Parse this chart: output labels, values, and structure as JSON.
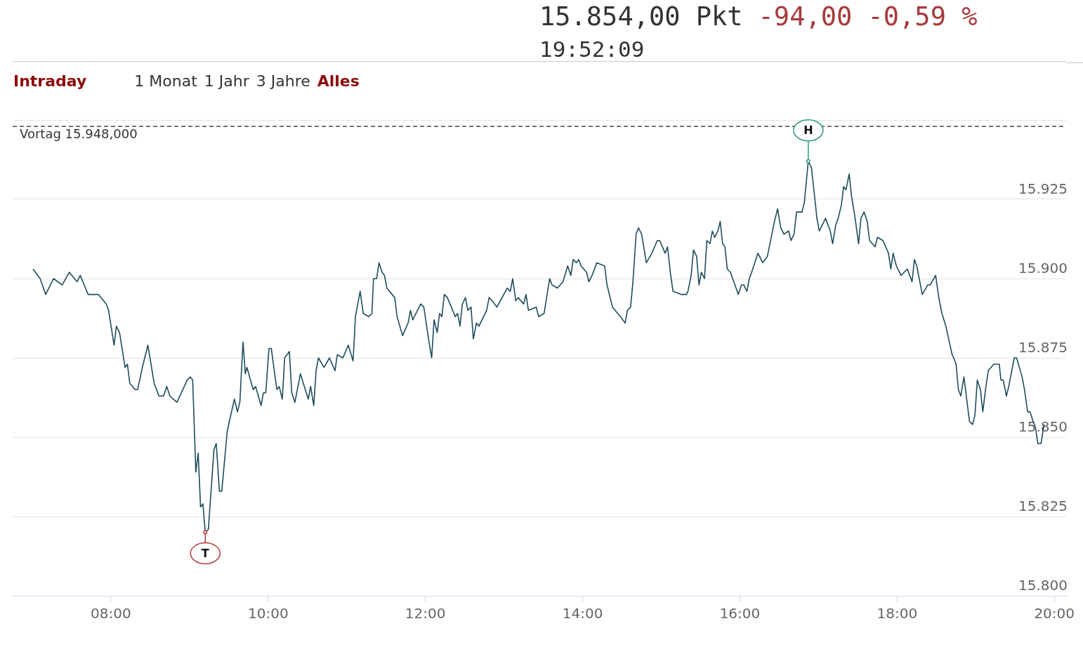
{
  "chart_data": {
    "type": "line",
    "title": "15.854,00 Pkt",
    "subtitle": "19:52:09",
    "annotations": [
      "-94,00 -0,59 %",
      "Intraday",
      "1 Monat",
      "1 Jahr",
      "3 Jahre",
      "Alles",
      {
        "text": "H",
        "x": 16.87,
        "y": 15937
      },
      {
        "text": "T",
        "x": 9.2,
        "y": 15820
      }
    ],
    "color": "#1e4d5c",
    "grid": "y",
    "xlim": [
      6.75,
      20.15
    ],
    "xticks": [
      {
        "value": 8,
        "label": "08:00"
      },
      {
        "value": 10,
        "label": "10:00"
      },
      {
        "value": 12,
        "label": "12:00"
      },
      {
        "value": 14,
        "label": "14:00"
      },
      {
        "value": 16,
        "label": "16:00"
      },
      {
        "value": 18,
        "label": "18:00"
      },
      {
        "value": 20,
        "label": "20:00"
      }
    ],
    "ylim": [
      15800,
      15950
    ],
    "yticks": [
      {
        "value": 15800,
        "label": "15.800"
      },
      {
        "value": 15825,
        "label": "15.825"
      },
      {
        "value": 15850,
        "label": "15.850"
      },
      {
        "value": 15875,
        "label": "15.875"
      },
      {
        "value": 15900,
        "label": "15.900"
      },
      {
        "value": 15925,
        "label": "15.925"
      },
      {
        "value": 15950,
        "label": null
      }
    ],
    "ref_lines": [
      {
        "axis": "y",
        "value": 15948,
        "label": "Vortag 15.948,000",
        "color": "#222222",
        "line_style": "dashed"
      }
    ],
    "x": [
      7.01,
      7.1,
      7.17,
      7.27,
      7.38,
      7.47,
      7.57,
      7.61,
      7.71,
      7.84,
      7.94,
      7.97,
      8.04,
      8.07,
      8.11,
      8.18,
      8.21,
      8.24,
      8.31,
      8.34,
      8.4,
      8.47,
      8.55,
      8.61,
      8.67,
      8.71,
      8.75,
      8.84,
      8.97,
      9.01,
      9.04,
      9.08,
      9.11,
      9.14,
      9.17,
      9.2,
      9.24,
      9.31,
      9.34,
      9.38,
      9.41,
      9.48,
      9.57,
      9.61,
      9.64,
      9.68,
      9.71,
      9.73,
      9.81,
      9.84,
      9.91,
      9.94,
      9.97,
      10.01,
      10.04,
      10.11,
      10.14,
      10.18,
      10.21,
      10.27,
      10.3,
      10.34,
      10.41,
      10.51,
      10.54,
      10.58,
      10.61,
      10.64,
      10.71,
      10.78,
      10.85,
      10.88,
      10.95,
      11.02,
      11.08,
      11.11,
      11.17,
      11.21,
      11.28,
      11.32,
      11.34,
      11.38,
      11.41,
      11.45,
      11.48,
      11.51,
      11.61,
      11.64,
      11.71,
      11.78,
      11.81,
      11.84,
      11.94,
      11.98,
      12.04,
      12.08,
      12.11,
      12.15,
      12.18,
      12.21,
      12.24,
      12.28,
      12.38,
      12.41,
      12.44,
      12.47,
      12.51,
      12.54,
      12.58,
      12.61,
      12.65,
      12.68,
      12.78,
      12.81,
      12.85,
      12.91,
      13.04,
      13.08,
      13.11,
      13.15,
      13.18,
      13.25,
      13.28,
      13.31,
      13.41,
      13.44,
      13.51,
      13.58,
      13.61,
      13.68,
      13.75,
      13.81,
      13.85,
      13.88,
      13.92,
      13.95,
      13.98,
      14.05,
      14.08,
      14.12,
      14.18,
      14.28,
      14.31,
      14.38,
      14.48,
      14.54,
      14.57,
      14.61,
      14.64,
      14.68,
      14.71,
      14.75,
      14.81,
      14.88,
      14.95,
      14.98,
      15.05,
      15.08,
      15.12,
      15.15,
      15.25,
      15.32,
      15.34,
      15.38,
      15.41,
      15.45,
      15.48,
      15.51,
      15.55,
      15.58,
      15.62,
      15.65,
      15.68,
      15.72,
      15.75,
      15.78,
      15.81,
      15.84,
      15.88,
      15.98,
      16.02,
      16.05,
      16.09,
      16.12,
      16.15,
      16.23,
      16.29,
      16.35,
      16.44,
      16.48,
      16.52,
      16.56,
      16.62,
      16.65,
      16.69,
      16.72,
      16.79,
      16.82,
      16.87,
      16.91,
      16.95,
      16.98,
      17.01,
      17.09,
      17.15,
      17.18,
      17.22,
      17.25,
      17.29,
      17.32,
      17.35,
      17.39,
      17.42,
      17.46,
      17.51,
      17.54,
      17.58,
      17.62,
      17.65,
      17.72,
      17.75,
      17.82,
      17.89,
      17.92,
      17.95,
      17.99,
      18.05,
      18.13,
      18.19,
      18.22,
      18.25,
      18.32,
      18.39,
      18.42,
      18.49,
      18.53,
      18.57,
      18.62,
      18.7,
      18.72,
      18.75,
      18.78,
      18.81,
      18.85,
      18.92,
      18.96,
      18.99,
      19.02,
      19.06,
      19.09,
      19.13,
      19.16,
      19.23,
      19.3,
      19.32,
      19.35,
      19.39,
      19.42,
      19.49,
      19.52,
      19.59,
      19.62,
      19.66,
      19.69,
      19.73,
      19.76,
      19.79,
      19.83,
      19.87
    ],
    "values": [
      15903,
      15900,
      15895,
      15900,
      15898,
      15902,
      15899,
      15901,
      15895,
      15895,
      15892,
      15890,
      15879,
      15885,
      15883,
      15872,
      15873,
      15867,
      15865,
      15865,
      15872,
      15879,
      15867,
      15863,
      15863,
      15866,
      15863,
      15861,
      15868,
      15869,
      15868,
      15839,
      15845,
      15828,
      15829,
      15820,
      15821,
      15846,
      15848,
      15833,
      15833,
      15852,
      15862,
      15858,
      15861,
      15880,
      15870,
      15872,
      15865,
      15866,
      15860,
      15864,
      15864,
      15878,
      15878,
      15865,
      15866,
      15862,
      15875,
      15877,
      15864,
      15861,
      15870,
      15862,
      15866,
      15860,
      15871,
      15875,
      15872,
      15875,
      15871,
      15876,
      15875,
      15879,
      15874,
      15888,
      15896,
      15889,
      15888,
      15889,
      15900,
      15900,
      15905,
      15902,
      15901,
      15897,
      15894,
      15888,
      15882,
      15886,
      15890,
      15887,
      15892,
      15891,
      15881,
      15875,
      15887,
      15883,
      15889,
      15888,
      15895,
      15894,
      15888,
      15889,
      15885,
      15892,
      15894,
      15890,
      15891,
      15881,
      15886,
      15885,
      15890,
      15894,
      15893,
      15891,
      15897,
      15896,
      15900,
      15893,
      15894,
      15892,
      15895,
      15890,
      15891,
      15888,
      15889,
      15900,
      15898,
      15897,
      15899,
      15904,
      15901,
      15906,
      15905,
      15906,
      15904,
      15902,
      15899,
      15901,
      15905,
      15904,
      15898,
      15891,
      15888,
      15886,
      15890,
      15891,
      15899,
      15914,
      15916,
      15914,
      15905,
      15908,
      15912,
      15912,
      15908,
      15910,
      15901,
      15896,
      15895,
      15895,
      15896,
      15901,
      15909,
      15907,
      15898,
      15902,
      15900,
      15912,
      15911,
      15915,
      15913,
      15915,
      15918,
      15911,
      15910,
      15903,
      15902,
      15895,
      15898,
      15898,
      15896,
      15900,
      15902,
      15908,
      15905,
      15907,
      15918,
      15922,
      15916,
      15914,
      15915,
      15912,
      15914,
      15921,
      15921,
      15924,
      15937,
      15935,
      15926,
      15919,
      15915,
      15919,
      15915,
      15911,
      15917,
      15919,
      15923,
      15929,
      15928,
      15933,
      15926,
      15920,
      15911,
      15919,
      15921,
      15918,
      15912,
      15910,
      15913,
      15912,
      15908,
      15903,
      15908,
      15904,
      15901,
      15903,
      15899,
      15906,
      15904,
      15895,
      15898,
      15898,
      15901,
      15894,
      15889,
      15885,
      15876,
      15875,
      15873,
      15865,
      15863,
      15869,
      15855,
      15854,
      15857,
      15868,
      15865,
      15858,
      15866,
      15871,
      15873,
      15873,
      15868,
      15868,
      15863,
      15866,
      15875,
      15875,
      15869,
      15865,
      15858,
      15858,
      15855,
      15853,
      15848,
      15848,
      15854
    ]
  }
}
